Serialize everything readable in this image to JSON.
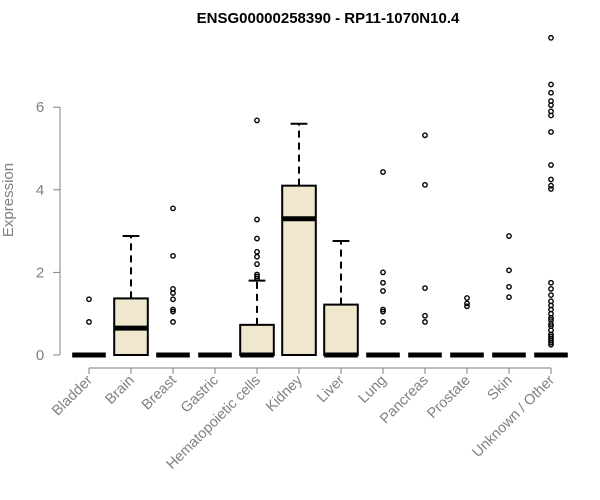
{
  "chart_data": {
    "type": "boxplot",
    "title": "ENSG00000258390 - RP11-1070N10.4",
    "xlabel": "",
    "ylabel": "Expression",
    "ylim": [
      0,
      7.7
    ],
    "yticks": [
      0,
      2,
      4,
      6
    ],
    "grid": false,
    "legend": "none",
    "colors": {
      "box_fill": "#efe8cf",
      "stroke": "#000000",
      "axis": "#808080"
    },
    "categories": [
      "Bladder",
      "Brain",
      "Breast",
      "Gastric",
      "Hematopoietic cells",
      "Kidney",
      "Liver",
      "Lung",
      "Pancreas",
      "Prostate",
      "Skin",
      "Unknown / Other"
    ],
    "boxes": [
      {
        "q1": 0,
        "median": 0,
        "q3": 0,
        "whisker_low": 0,
        "whisker_high": 0,
        "outliers": [
          1.35,
          0.8
        ]
      },
      {
        "q1": 0,
        "median": 0.65,
        "q3": 1.37,
        "whisker_low": 0,
        "whisker_high": 2.88,
        "outliers": []
      },
      {
        "q1": 0,
        "median": 0,
        "q3": 0,
        "whisker_low": 0,
        "whisker_high": 0,
        "outliers": [
          3.55,
          2.4,
          1.6,
          1.5,
          1.35,
          1.1,
          1.05,
          0.8
        ]
      },
      {
        "q1": 0,
        "median": 0,
        "q3": 0,
        "whisker_low": 0,
        "whisker_high": 0,
        "outliers": []
      },
      {
        "q1": 0,
        "median": 0,
        "q3": 0.73,
        "whisker_low": 0,
        "whisker_high": 1.8,
        "outliers": [
          5.68,
          3.28,
          2.82,
          2.5,
          2.38,
          2.2,
          1.95,
          1.9,
          1.85
        ]
      },
      {
        "q1": 0,
        "median": 3.3,
        "q3": 4.1,
        "whisker_low": 0,
        "whisker_high": 5.6,
        "outliers": []
      },
      {
        "q1": 0,
        "median": 0,
        "q3": 1.22,
        "whisker_low": 0,
        "whisker_high": 2.76,
        "outliers": []
      },
      {
        "q1": 0,
        "median": 0,
        "q3": 0,
        "whisker_low": 0,
        "whisker_high": 0,
        "outliers": [
          4.43,
          2.0,
          1.75,
          1.55,
          1.1,
          1.05,
          0.8
        ]
      },
      {
        "q1": 0,
        "median": 0,
        "q3": 0,
        "whisker_low": 0,
        "whisker_high": 0,
        "outliers": [
          5.32,
          4.12,
          1.62,
          0.95,
          0.8
        ]
      },
      {
        "q1": 0,
        "median": 0,
        "q3": 0,
        "whisker_low": 0,
        "whisker_high": 0,
        "outliers": [
          1.38,
          1.25,
          1.18
        ]
      },
      {
        "q1": 0,
        "median": 0,
        "q3": 0,
        "whisker_low": 0,
        "whisker_high": 0,
        "outliers": [
          2.88,
          2.05,
          1.65,
          1.4
        ]
      },
      {
        "q1": 0,
        "median": 0,
        "q3": 0,
        "whisker_low": 0,
        "whisker_high": 0,
        "outliers": [
          7.68,
          6.55,
          6.35,
          6.15,
          6.05,
          5.9,
          5.8,
          5.4,
          4.6,
          4.25,
          4.1,
          4.02,
          1.75,
          1.6,
          1.45,
          1.3,
          1.2,
          1.1,
          1.0,
          0.9,
          0.85,
          0.75,
          0.7,
          0.6,
          0.5,
          0.45,
          0.4,
          0.35,
          0.3,
          0.25
        ]
      }
    ]
  }
}
